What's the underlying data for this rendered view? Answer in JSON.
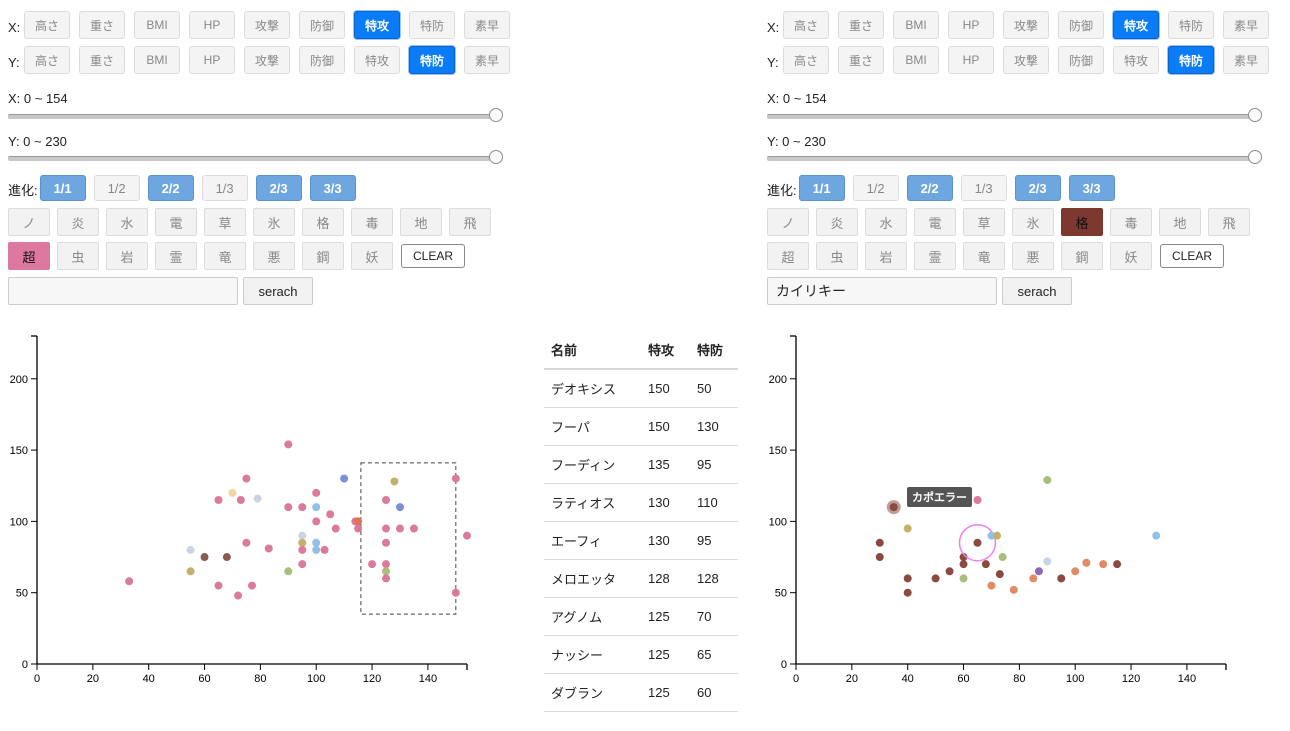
{
  "controls": {
    "x_axis_label": "X:",
    "y_axis_label": "Y:",
    "stat_buttons": [
      "高さ",
      "重さ",
      "BMI",
      "HP",
      "攻撃",
      "防御",
      "特攻",
      "特防",
      "素早"
    ],
    "x_range_label": "X: 0 ~ 154",
    "y_range_label": "Y: 0 ~ 230",
    "evolution_label": "進化:",
    "evolution_buttons": [
      "1/1",
      "1/2",
      "2/2",
      "1/3",
      "2/3",
      "3/3"
    ],
    "types_row1": [
      "ノ",
      "炎",
      "水",
      "電",
      "草",
      "氷",
      "格",
      "毒",
      "地",
      "飛"
    ],
    "types_row2": [
      "超",
      "虫",
      "岩",
      "霊",
      "竜",
      "悪",
      "鋼",
      "妖"
    ],
    "clear_label": "CLEAR",
    "search_button_label": "serach"
  },
  "left_panel": {
    "x_selected": "特攻",
    "y_selected": "特防",
    "active_evolutions": [
      "1/1",
      "2/2",
      "2/3",
      "3/3"
    ],
    "active_type": "超",
    "active_type_color": "#dd789f",
    "search_value": ""
  },
  "right_panel": {
    "x_selected": "特攻",
    "y_selected": "特防",
    "active_evolutions": [
      "1/1",
      "2/2",
      "2/3",
      "3/3"
    ],
    "active_type": "格",
    "active_type_color": "#7d3830",
    "search_value": "カイリキー",
    "tooltip": "カポエラー"
  },
  "table": {
    "headers": [
      "名前",
      "特攻",
      "特防"
    ],
    "rows": [
      [
        "デオキシス",
        "150",
        "50"
      ],
      [
        "フーパ",
        "150",
        "130"
      ],
      [
        "フーディン",
        "135",
        "95"
      ],
      [
        "ラティオス",
        "130",
        "110"
      ],
      [
        "エーフィ",
        "130",
        "95"
      ],
      [
        "メロエッタ",
        "128",
        "128"
      ],
      [
        "アグノム",
        "125",
        "70"
      ],
      [
        "ナッシー",
        "125",
        "65"
      ],
      [
        "ダブラン",
        "125",
        "60"
      ]
    ]
  },
  "colors": {
    "accent": "#0a7cf8",
    "evolution_active": "#6ea6e0"
  },
  "chart_data": [
    {
      "type": "scatter",
      "xlim": [
        0,
        154
      ],
      "ylim": [
        0,
        230
      ],
      "x_ticks": [
        "0",
        "20",
        "40",
        "60",
        "80",
        "100",
        "120",
        "140"
      ],
      "y_ticks": [
        "0",
        "50",
        "100",
        "150",
        "200"
      ],
      "points": [
        {
          "x": 33,
          "y": 58,
          "color": "#dc7a9b"
        },
        {
          "x": 55,
          "y": 65,
          "color": "#c4b06a"
        },
        {
          "x": 55,
          "y": 80,
          "color": "#c9d5e3"
        },
        {
          "x": 60,
          "y": 75,
          "color": "#8a5a4e"
        },
        {
          "x": 65,
          "y": 115,
          "color": "#dc7a9b"
        },
        {
          "x": 65,
          "y": 55,
          "color": "#dc7a9b"
        },
        {
          "x": 68,
          "y": 75,
          "color": "#8a5a4e"
        },
        {
          "x": 70,
          "y": 120,
          "color": "#eed8a6"
        },
        {
          "x": 72,
          "y": 48,
          "color": "#dc7a9b"
        },
        {
          "x": 73,
          "y": 115,
          "color": "#dc7a9b"
        },
        {
          "x": 75,
          "y": 130,
          "color": "#dc7a9b"
        },
        {
          "x": 75,
          "y": 85,
          "color": "#dc7a9b"
        },
        {
          "x": 77,
          "y": 55,
          "color": "#dc7a9b"
        },
        {
          "x": 79,
          "y": 116,
          "color": "#c9d5e3"
        },
        {
          "x": 83,
          "y": 81,
          "color": "#dc7a9b"
        },
        {
          "x": 90,
          "y": 154,
          "color": "#dc7a9b"
        },
        {
          "x": 90,
          "y": 110,
          "color": "#dc7a9b"
        },
        {
          "x": 90,
          "y": 65,
          "color": "#a8be7a"
        },
        {
          "x": 95,
          "y": 110,
          "color": "#dc7a9b"
        },
        {
          "x": 95,
          "y": 90,
          "color": "#c9d5e3"
        },
        {
          "x": 95,
          "y": 85,
          "color": "#c4b06a"
        },
        {
          "x": 95,
          "y": 80,
          "color": "#dc7a9b"
        },
        {
          "x": 95,
          "y": 70,
          "color": "#dc7a9b"
        },
        {
          "x": 100,
          "y": 120,
          "color": "#dc7a9b"
        },
        {
          "x": 100,
          "y": 110,
          "color": "#8fc2e6"
        },
        {
          "x": 100,
          "y": 100,
          "color": "#dc7a9b"
        },
        {
          "x": 100,
          "y": 85,
          "color": "#8fc2e6"
        },
        {
          "x": 100,
          "y": 80,
          "color": "#8fc2e6"
        },
        {
          "x": 103,
          "y": 80,
          "color": "#dc7a9b"
        },
        {
          "x": 105,
          "y": 105,
          "color": "#dc7a9b"
        },
        {
          "x": 107,
          "y": 95,
          "color": "#dc7a9b"
        },
        {
          "x": 110,
          "y": 130,
          "color": "#7a8fd8"
        },
        {
          "x": 114,
          "y": 100,
          "color": "#dc7a9b"
        },
        {
          "x": 115,
          "y": 100,
          "color": "#dd7350"
        },
        {
          "x": 115,
          "y": 95,
          "color": "#dc7a9b"
        },
        {
          "x": 120,
          "y": 70,
          "color": "#dc7a9b"
        },
        {
          "x": 125,
          "y": 115,
          "color": "#dc7a9b"
        },
        {
          "x": 125,
          "y": 95,
          "color": "#dc7a9b"
        },
        {
          "x": 125,
          "y": 85,
          "color": "#dc7a9b"
        },
        {
          "x": 125,
          "y": 70,
          "color": "#dc7a9b"
        },
        {
          "x": 125,
          "y": 65,
          "color": "#a8be7a"
        },
        {
          "x": 125,
          "y": 60,
          "color": "#dc7a9b"
        },
        {
          "x": 128,
          "y": 128,
          "color": "#c4b06a"
        },
        {
          "x": 130,
          "y": 110,
          "color": "#7a8fd8"
        },
        {
          "x": 130,
          "y": 95,
          "color": "#dc7a9b"
        },
        {
          "x": 135,
          "y": 95,
          "color": "#dc7a9b"
        },
        {
          "x": 150,
          "y": 130,
          "color": "#dc7a9b"
        },
        {
          "x": 150,
          "y": 50,
          "color": "#dc7a9b"
        },
        {
          "x": 154,
          "y": 90,
          "color": "#dc7a9b"
        }
      ],
      "selection": {
        "x_min": 116,
        "x_max": 150,
        "y_min": 35,
        "y_max": 141
      }
    },
    {
      "type": "scatter",
      "xlim": [
        0,
        154
      ],
      "ylim": [
        0,
        230
      ],
      "x_ticks": [
        "0",
        "20",
        "40",
        "60",
        "80",
        "100",
        "120",
        "140"
      ],
      "y_ticks": [
        "0",
        "50",
        "100",
        "150",
        "200"
      ],
      "points": [
        {
          "x": 30,
          "y": 85,
          "color": "#8a4a40"
        },
        {
          "x": 30,
          "y": 75,
          "color": "#8a4a40"
        },
        {
          "x": 35,
          "y": 110,
          "color": "#8a4a40",
          "highlight": true
        },
        {
          "x": 40,
          "y": 95,
          "color": "#c4b06a"
        },
        {
          "x": 40,
          "y": 60,
          "color": "#8a4a40"
        },
        {
          "x": 40,
          "y": 50,
          "color": "#8a4a40"
        },
        {
          "x": 50,
          "y": 60,
          "color": "#8a4a40"
        },
        {
          "x": 55,
          "y": 65,
          "color": "#8a4a40"
        },
        {
          "x": 60,
          "y": 75,
          "color": "#8a4a40"
        },
        {
          "x": 60,
          "y": 70,
          "color": "#8a4a40"
        },
        {
          "x": 60,
          "y": 60,
          "color": "#a8be7a"
        },
        {
          "x": 65,
          "y": 115,
          "color": "#dc7a9b"
        },
        {
          "x": 65,
          "y": 85,
          "color": "#8a4a40",
          "ring": true
        },
        {
          "x": 68,
          "y": 70,
          "color": "#8a4a40"
        },
        {
          "x": 70,
          "y": 90,
          "color": "#8fc2e6"
        },
        {
          "x": 70,
          "y": 55,
          "color": "#e08a68"
        },
        {
          "x": 72,
          "y": 90,
          "color": "#c4b06a"
        },
        {
          "x": 73,
          "y": 63,
          "color": "#8a4a40"
        },
        {
          "x": 74,
          "y": 75,
          "color": "#a8be7a"
        },
        {
          "x": 78,
          "y": 52,
          "color": "#e08a68"
        },
        {
          "x": 85,
          "y": 60,
          "color": "#e08a68"
        },
        {
          "x": 87,
          "y": 65,
          "color": "#8a6ab8"
        },
        {
          "x": 90,
          "y": 129,
          "color": "#a8be7a"
        },
        {
          "x": 90,
          "y": 72,
          "color": "#c9d5e3"
        },
        {
          "x": 95,
          "y": 60,
          "color": "#8a4a40"
        },
        {
          "x": 100,
          "y": 65,
          "color": "#e08a68"
        },
        {
          "x": 104,
          "y": 71,
          "color": "#e08a68"
        },
        {
          "x": 110,
          "y": 70,
          "color": "#e08a68"
        },
        {
          "x": 115,
          "y": 70,
          "color": "#8a4a40"
        },
        {
          "x": 129,
          "y": 90,
          "color": "#8fc2e6"
        }
      ]
    }
  ]
}
